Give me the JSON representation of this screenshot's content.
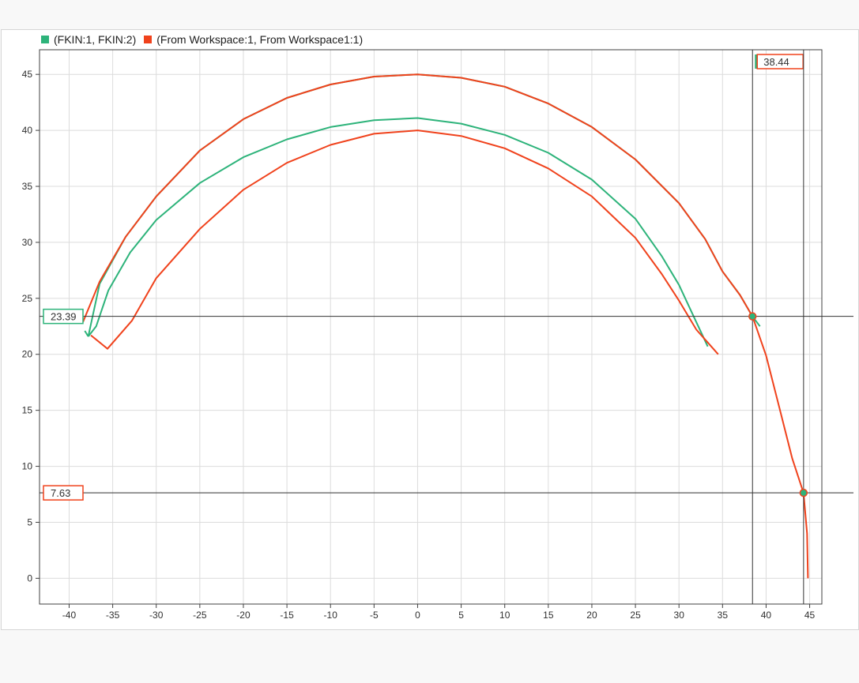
{
  "legend": {
    "series1_label": "(FKIN:1, FKIN:2)",
    "series2_label": "(From Workspace:1, From Workspace1:1)"
  },
  "colors": {
    "series1": "#2db37a",
    "series2": "#f0421c",
    "grid": "#dcdcdc",
    "cursor": "#333333"
  },
  "cursors": {
    "vertical": [
      {
        "x": 38.44,
        "label": "38.44",
        "color": "series2"
      },
      {
        "x": 44.3,
        "label": "",
        "color": "series2"
      }
    ],
    "horizontal": [
      {
        "y": 23.39,
        "label": "23.39",
        "color": "series1"
      },
      {
        "y": 7.63,
        "label": "7.63",
        "color": "series2"
      }
    ],
    "markers": [
      {
        "x": 38.44,
        "y": 23.39
      },
      {
        "x": 44.3,
        "y": 7.63
      }
    ]
  },
  "chart_data": {
    "type": "line",
    "xlim": [
      -43.4,
      46.4
    ],
    "ylim": [
      -2.3,
      47.2
    ],
    "xticks": [
      -40,
      -35,
      -30,
      -25,
      -20,
      -15,
      -10,
      -5,
      0,
      5,
      10,
      15,
      20,
      25,
      30,
      35,
      40,
      45
    ],
    "yticks": [
      0,
      5,
      10,
      15,
      20,
      25,
      30,
      35,
      40,
      45
    ],
    "grid": true,
    "legend_position": "top-left",
    "series": [
      {
        "name": "(FKIN:1, FKIN:2)",
        "color": "#2db37a",
        "segments": [
          [
            [
              -37.8,
              21.6
            ],
            [
              -36.5,
              26.3
            ],
            [
              -33.5,
              30.5
            ],
            [
              -30,
              34.1
            ],
            [
              -25,
              38.2
            ],
            [
              -20,
              41.0
            ],
            [
              -15,
              42.9
            ],
            [
              -10,
              44.1
            ],
            [
              -5,
              44.8
            ],
            [
              0,
              45.0
            ],
            [
              5,
              44.7
            ],
            [
              10,
              43.9
            ],
            [
              15,
              42.4
            ],
            [
              20,
              40.3
            ],
            [
              25,
              37.4
            ],
            [
              30,
              33.5
            ],
            [
              33,
              30.3
            ],
            [
              35,
              27.4
            ],
            [
              37,
              25.3
            ],
            [
              38.44,
              23.39
            ],
            [
              39.3,
              22.5
            ]
          ],
          [
            [
              -37.8,
              21.6
            ],
            [
              -36.9,
              22.5
            ],
            [
              -35.5,
              25.7
            ],
            [
              -33,
              29.1
            ],
            [
              -30,
              32.0
            ],
            [
              -25,
              35.3
            ],
            [
              -20,
              37.6
            ],
            [
              -15,
              39.2
            ],
            [
              -10,
              40.3
            ],
            [
              -5,
              40.9
            ],
            [
              0,
              41.1
            ],
            [
              5,
              40.6
            ],
            [
              10,
              39.6
            ],
            [
              15,
              38.0
            ],
            [
              20,
              35.6
            ],
            [
              25,
              32.1
            ],
            [
              28,
              28.8
            ],
            [
              30,
              26.2
            ],
            [
              31.5,
              23.7
            ],
            [
              33.3,
              20.7
            ]
          ],
          [
            [
              -38.2,
              22.1
            ],
            [
              -37.8,
              21.6
            ]
          ]
        ]
      },
      {
        "name": "(From Workspace:1, From Workspace1:1)",
        "color": "#f0421c",
        "segments": [
          [
            [
              -38.4,
              22.9
            ],
            [
              -36.5,
              26.5
            ],
            [
              -33.5,
              30.5
            ],
            [
              -30,
              34.1
            ],
            [
              -25,
              38.2
            ],
            [
              -20,
              41.0
            ],
            [
              -15,
              42.9
            ],
            [
              -10,
              44.1
            ],
            [
              -5,
              44.8
            ],
            [
              0,
              45.0
            ],
            [
              5,
              44.7
            ],
            [
              10,
              43.9
            ],
            [
              15,
              42.4
            ],
            [
              20,
              40.3
            ],
            [
              25,
              37.4
            ],
            [
              30,
              33.5
            ],
            [
              33,
              30.3
            ],
            [
              35,
              27.4
            ],
            [
              37,
              25.3
            ],
            [
              38.44,
              23.39
            ],
            [
              40,
              19.9
            ],
            [
              41.5,
              15.3
            ],
            [
              43,
              10.7
            ],
            [
              44.3,
              7.63
            ],
            [
              44.7,
              4.0
            ],
            [
              44.8,
              0
            ]
          ],
          [
            [
              -37.5,
              21.7
            ],
            [
              -35.6,
              20.5
            ],
            [
              -32.8,
              23.0
            ],
            [
              -30,
              26.8
            ],
            [
              -25,
              31.2
            ],
            [
              -20,
              34.7
            ],
            [
              -15,
              37.1
            ],
            [
              -10,
              38.7
            ],
            [
              -5,
              39.7
            ],
            [
              0,
              40.0
            ],
            [
              5,
              39.5
            ],
            [
              10,
              38.4
            ],
            [
              15,
              36.6
            ],
            [
              20,
              34.1
            ],
            [
              25,
              30.4
            ],
            [
              28,
              27.2
            ],
            [
              30,
              24.8
            ],
            [
              32,
              22.2
            ],
            [
              34.5,
              20.0
            ]
          ]
        ]
      }
    ]
  }
}
